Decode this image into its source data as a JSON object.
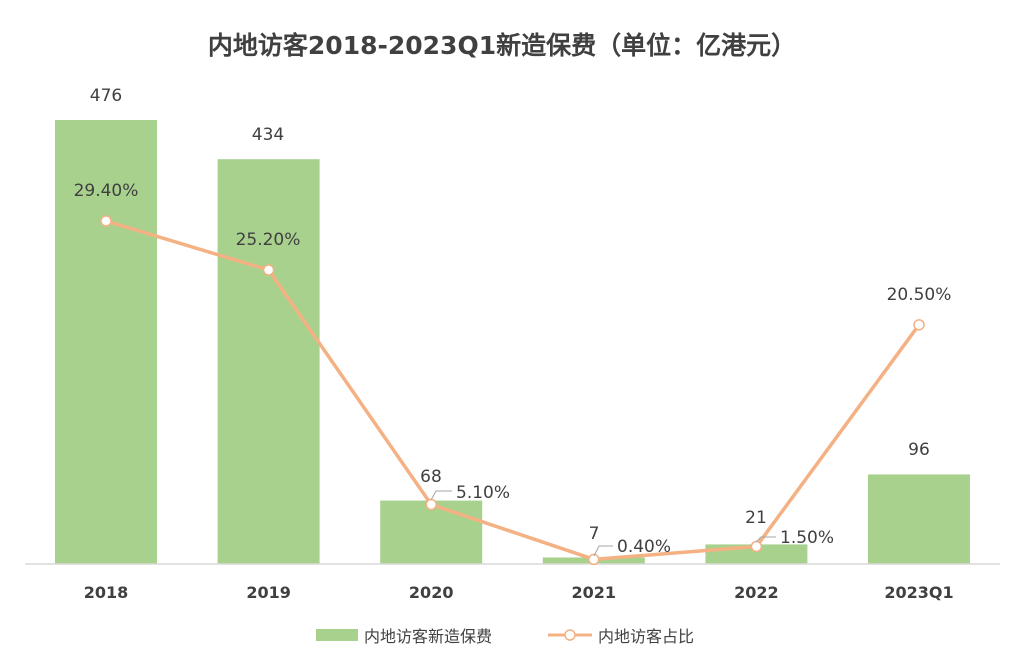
{
  "chart_data": {
    "type": "bar",
    "title": "内地访客2018-2023Q1新造保费（单位：亿港元）",
    "categories": [
      "2018",
      "2019",
      "2020",
      "2021",
      "2022",
      "2023Q1"
    ],
    "series": [
      {
        "name": "内地访客新造保费",
        "type": "bar",
        "values": [
          476,
          434,
          68,
          7,
          21,
          96
        ],
        "labels": [
          "476",
          "434",
          "68",
          "7",
          "21",
          "96"
        ],
        "color": "#a9d18e"
      },
      {
        "name": "内地访客占比",
        "type": "line",
        "values": [
          29.4,
          25.2,
          5.1,
          0.4,
          1.5,
          20.5
        ],
        "labels": [
          "29.40%",
          "25.20%",
          "5.10%",
          "0.40%",
          "1.50%",
          "20.50%"
        ],
        "color": "#f4b183"
      }
    ],
    "bar_ylim": [
      0,
      476
    ],
    "line_ylim": [
      0,
      29.4
    ],
    "legend_position": "bottom",
    "grid": false
  }
}
